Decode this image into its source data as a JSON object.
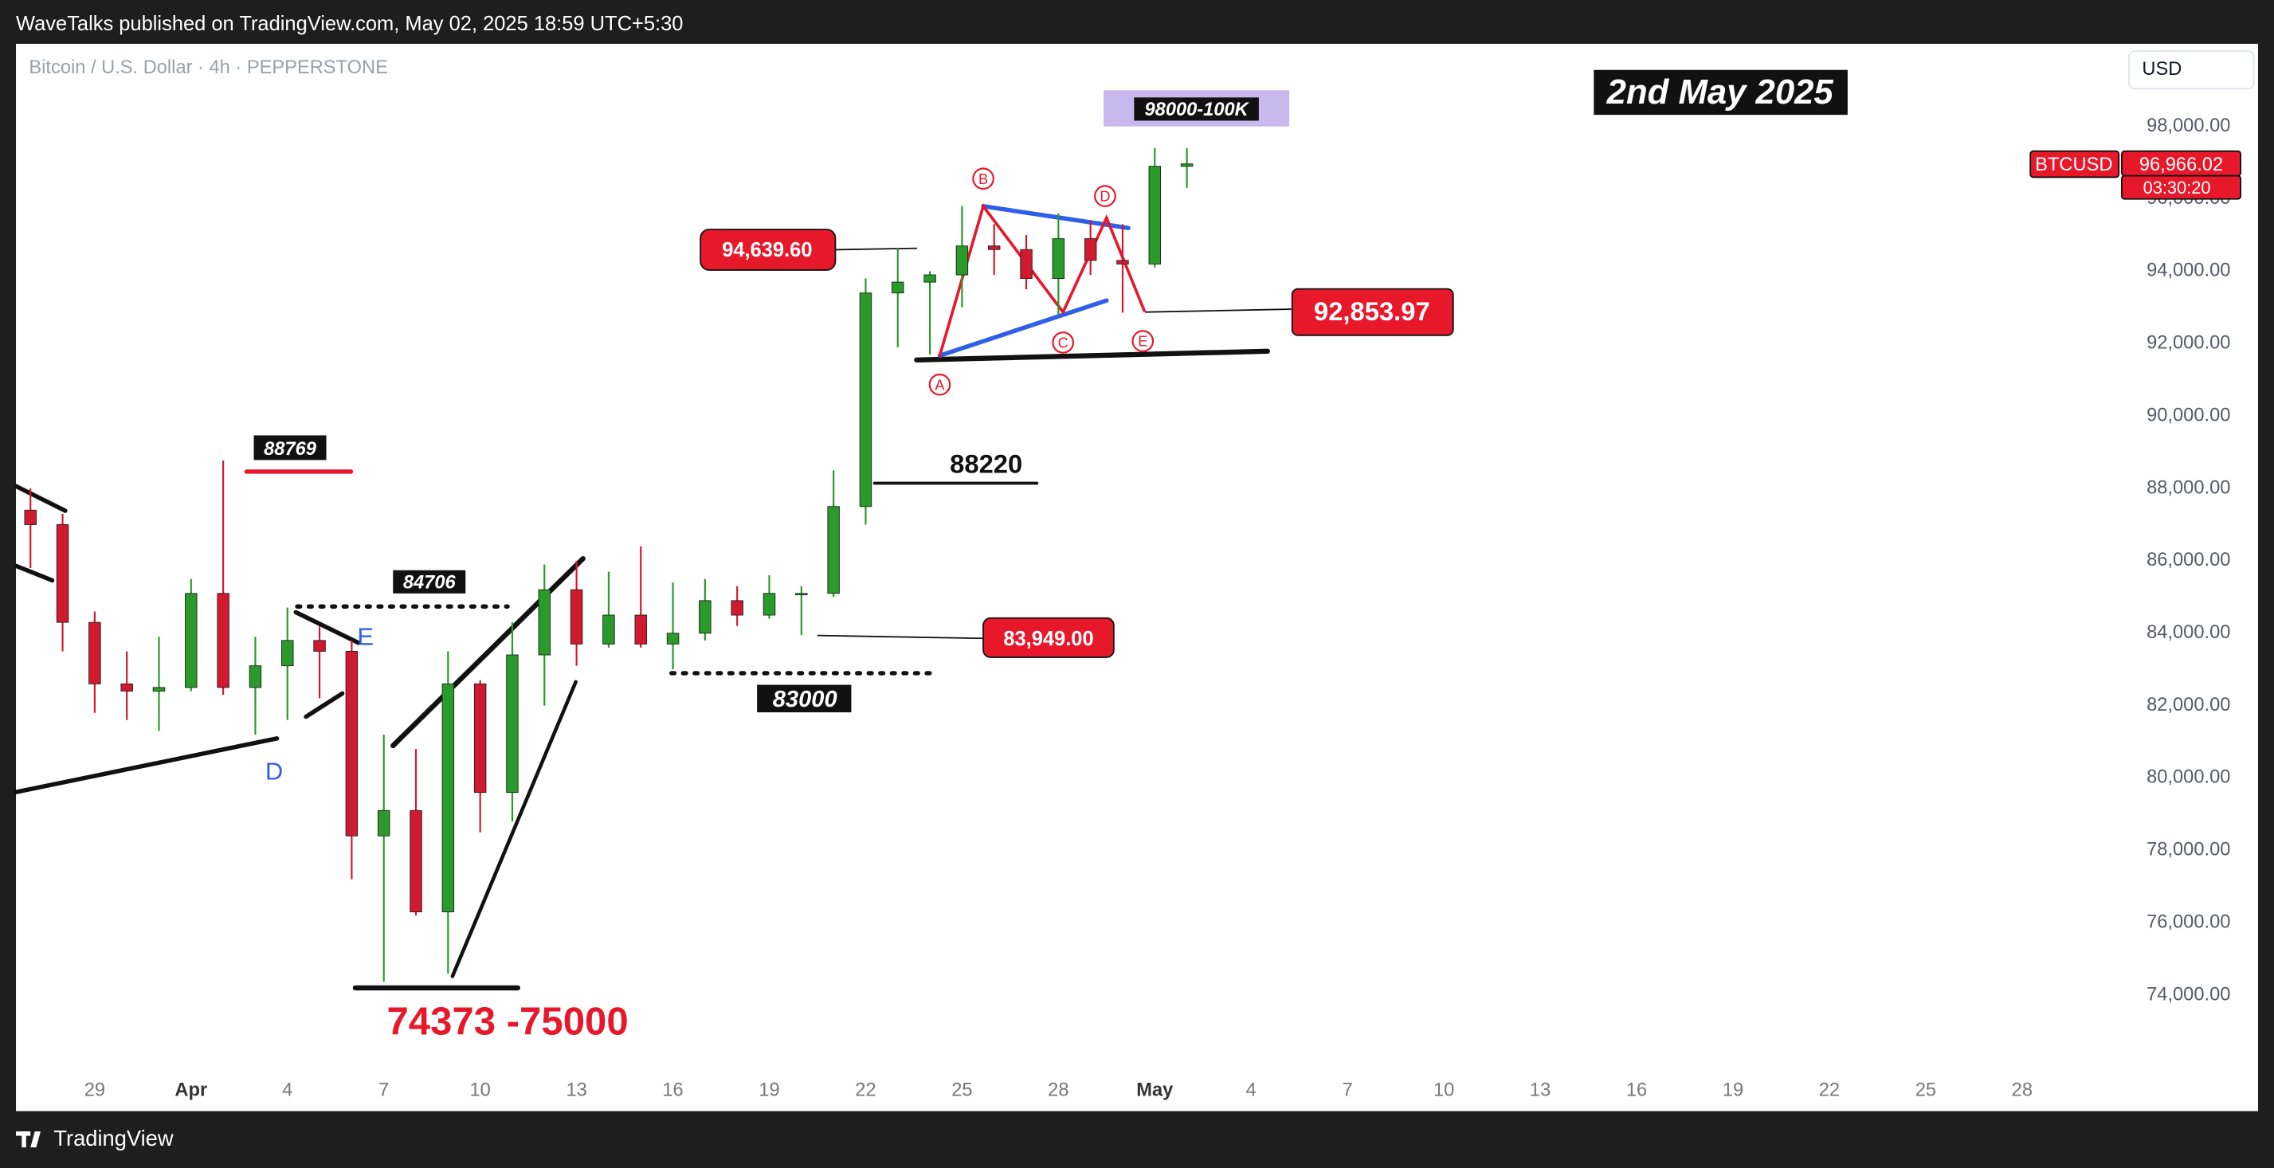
{
  "header": {
    "publisher": "WaveTalks published on TradingView.com, May 02, 2025 18:59 UTC+5:30",
    "footer": "TradingView"
  },
  "chart_data": {
    "type": "candlestick",
    "title": "Bitcoin / U.S. Dollar · 4h · PEPPERSTONE",
    "currency": "USD",
    "categories": [
      null,
      null,
      "29",
      null,
      null,
      "Apr",
      null,
      null,
      "4",
      null,
      null,
      "7",
      null,
      null,
      "10",
      null,
      null,
      "13",
      null,
      null,
      "16",
      null,
      null,
      "19",
      null,
      null,
      "22",
      null,
      null,
      "25",
      null,
      null,
      "28",
      null,
      null,
      "May",
      null,
      null,
      "4",
      null,
      null,
      "7",
      null,
      null,
      "10",
      null,
      null,
      "13",
      null,
      null,
      "16",
      null,
      null,
      "19",
      null,
      null,
      "22",
      null,
      null,
      "25",
      null,
      null,
      "28",
      null,
      null,
      null
    ],
    "open": [
      87400,
      87000,
      84300,
      82600,
      82400,
      82500,
      85100,
      82500,
      83100,
      83800,
      83500,
      78400,
      79100,
      76300,
      82600,
      79600,
      83400,
      85200,
      83700,
      84500,
      83700,
      84000,
      84900,
      84500,
      85100,
      85100,
      87500,
      93400,
      93700,
      93900,
      94700,
      94600,
      93800,
      94900,
      94300,
      94200,
      96900,
      null,
      null,
      null,
      null,
      null,
      null,
      null,
      null,
      null,
      null,
      null,
      null,
      null,
      null,
      null,
      null,
      null,
      null,
      null,
      null,
      null,
      null,
      null,
      null,
      null,
      null,
      null,
      null,
      null
    ],
    "high": [
      88000,
      87300,
      84600,
      83500,
      83900,
      85500,
      88769,
      83900,
      84706,
      84200,
      83800,
      81200,
      80800,
      83500,
      82700,
      84300,
      85900,
      86000,
      85700,
      86400,
      85400,
      85500,
      85300,
      85600,
      85300,
      88500,
      93800,
      94639.6,
      94000,
      95800,
      95300,
      95000,
      95600,
      95400,
      95300,
      97400,
      97400,
      null,
      null,
      null,
      null,
      null,
      null,
      null,
      null,
      null,
      null,
      null,
      null,
      null,
      null,
      null,
      null,
      null,
      null,
      null,
      null,
      null,
      null,
      null,
      null,
      null,
      null,
      null,
      null,
      null
    ],
    "low": [
      85800,
      83500,
      81800,
      81600,
      81300,
      82400,
      82300,
      81200,
      81600,
      82200,
      77200,
      74373,
      76200,
      74600,
      78500,
      78800,
      82000,
      83100,
      83600,
      83600,
      83000,
      83800,
      84200,
      84400,
      83949,
      85000,
      87000,
      91900,
      91700,
      93000,
      93900,
      93500,
      92800,
      93900,
      92853.97,
      94100,
      96300,
      null,
      null,
      null,
      null,
      null,
      null,
      null,
      null,
      null,
      null,
      null,
      null,
      null,
      null,
      null,
      null,
      null,
      null,
      null,
      null,
      null,
      null,
      null,
      null,
      null,
      null,
      null,
      null,
      null
    ],
    "close": [
      87000,
      84300,
      82600,
      82400,
      82500,
      85100,
      82500,
      83100,
      83800,
      83500,
      78400,
      79100,
      76300,
      82600,
      79600,
      83400,
      85200,
      83700,
      84500,
      83700,
      84000,
      84900,
      84500,
      85100,
      85100,
      87500,
      93400,
      93700,
      93900,
      94700,
      94600,
      93800,
      94900,
      94300,
      94200,
      96900,
      96966.02,
      null,
      null,
      null,
      null,
      null,
      null,
      null,
      null,
      null,
      null,
      null,
      null,
      null,
      null,
      null,
      null,
      null,
      null,
      null,
      null,
      null,
      null,
      null,
      null,
      null,
      null,
      null,
      null,
      null
    ],
    "up_color": "#2a9a2a",
    "down_color": "#d01a30",
    "ylim": [
      71837,
      100284
    ],
    "yticks": [
      {
        "value": 74000,
        "label": "74,000.00"
      },
      {
        "value": 76000,
        "label": "76,000.00"
      },
      {
        "value": 78000,
        "label": "78,000.00"
      },
      {
        "value": 80000,
        "label": "80,000.00"
      },
      {
        "value": 82000,
        "label": "82,000.00"
      },
      {
        "value": 84000,
        "label": "84,000.00"
      },
      {
        "value": 86000,
        "label": "86,000.00"
      },
      {
        "value": 88000,
        "label": "88,000.00"
      },
      {
        "value": 90000,
        "label": "90,000.00"
      },
      {
        "value": 92000,
        "label": "92,000.00"
      },
      {
        "value": 94000,
        "label": "94,000.00"
      },
      {
        "value": 96000,
        "label": "96,000.00"
      },
      {
        "value": 98000,
        "label": "98,000.00"
      }
    ],
    "annotations": [
      "2nd May 2025",
      "98000-100K",
      "BTCUSD",
      "96,966.02",
      "03:30:20",
      "94,639.60",
      "92,853.97",
      "88220",
      "88769",
      "84706",
      "83,949.00",
      "83000",
      "74373 -75000",
      "D",
      "E",
      "A",
      "B",
      "C",
      "D",
      "E"
    ]
  }
}
